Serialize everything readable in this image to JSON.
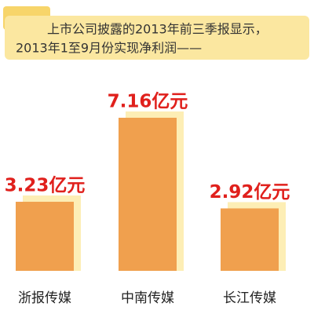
{
  "chart_data": {
    "type": "bar",
    "title": "上市公司披露的2013年前三季报显示，",
    "subtitle": "2013年1至9月份实现净利润——",
    "categories": [
      "浙报传媒",
      "中南传媒",
      "长江传媒"
    ],
    "values": [
      3.23,
      7.16,
      2.92
    ],
    "value_labels": [
      "3.23亿元",
      "7.16亿元",
      "2.92亿元"
    ],
    "color": "#f0a04e"
  }
}
